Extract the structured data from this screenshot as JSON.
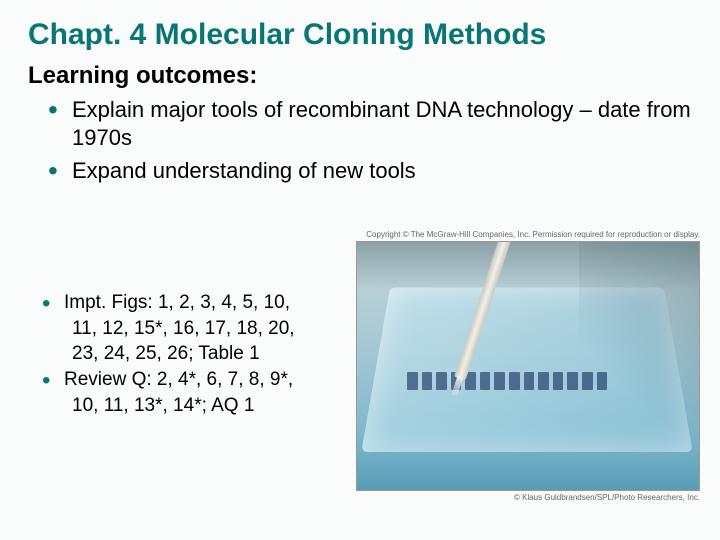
{
  "title": {
    "text": "Chapt. 4  Molecular Cloning Methods",
    "color": "#0a7575"
  },
  "subtitle": "Learning outcomes:",
  "outcomes_bullet_color": "#0a7575",
  "outcomes": [
    "Explain major tools of recombinant DNA technology – date from 1970s",
    "Expand understanding of new tools"
  ],
  "lower_bullet_color": "#0a7575",
  "lower_items": [
    {
      "lead": "Impt. Figs: 1, 2, 3, 4, 5, 10,",
      "cont": [
        "11, 12, 15*, 16, 17, 18, 20,",
        "23, 24, 25, 26; Table 1"
      ]
    },
    {
      "lead": "Review Q: 2, 4*, 6, 7, 8, 9*,",
      "cont": [
        "10, 11, 13*, 14*; AQ 1"
      ]
    }
  ],
  "photo": {
    "copyright_top": "Copyright © The McGraw-Hill Companies, Inc. Permission required for reproduction or display.",
    "copyright_bottom": "© Klaus Guldbrandsen/SPL/Photo Researchers, Inc.",
    "well_count": 14
  }
}
